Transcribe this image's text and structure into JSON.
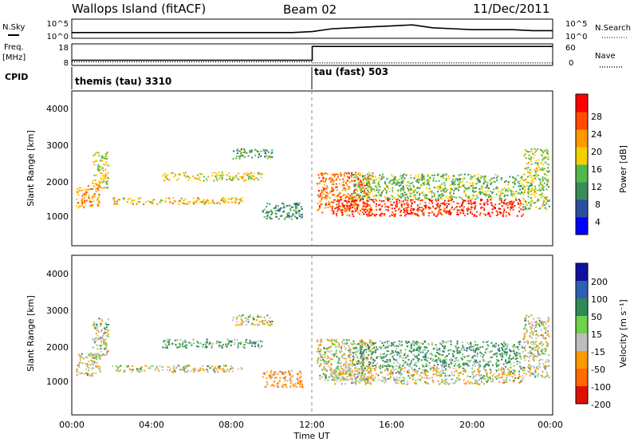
{
  "header": {
    "site": "Wallops Island (fitACF)",
    "beam": "Beam 02",
    "date": "11/Dec/2011"
  },
  "sky_panel": {
    "left_label": "N.Sky",
    "left_ticks": [
      "10^5",
      "10^0"
    ],
    "right_ticks": [
      "10^5",
      "10^0"
    ],
    "right_label": "N.Search"
  },
  "freq_panel": {
    "left_label_1": "Freq.",
    "left_label_2": "[MHz]",
    "left_ticks": [
      "18",
      "8"
    ],
    "right_ticks": [
      "60",
      "0"
    ],
    "right_label": "Nave"
  },
  "cpid": {
    "label": "CPID",
    "mode_1": "themis (tau) 3310",
    "mode_2": "tau (fast) 503"
  },
  "power_panel": {
    "ylabel": "Slant Range [km]",
    "y_ticks": [
      "4000",
      "3000",
      "2000",
      "1000"
    ],
    "colorbar_label": "Power [dB]",
    "colorbar_ticks": [
      "28",
      "24",
      "20",
      "16",
      "12",
      "8",
      "4"
    ]
  },
  "velocity_panel": {
    "ylabel": "Slant Range [km]",
    "y_ticks": [
      "4000",
      "3000",
      "2000",
      "1000"
    ],
    "colorbar_label": "Velocity [m s⁻¹]",
    "colorbar_ticks": [
      "200",
      "100",
      "50",
      "15",
      "-15",
      "-50",
      "-100",
      "-200"
    ]
  },
  "x_axis": {
    "ticks": [
      "00:00",
      "04:00",
      "08:00",
      "12:00",
      "16:00",
      "20:00",
      "00:00"
    ],
    "label": "Time UT"
  },
  "colors": {
    "power_scale": [
      "#0000ff",
      "#2a4fa0",
      "#3b8a5a",
      "#52b84e",
      "#f4d000",
      "#ff9a00",
      "#ff4a00",
      "#ff0000"
    ],
    "velocity_scale": [
      "#1010a0",
      "#2f5fb0",
      "#2e8b57",
      "#6fd24a",
      "#bdbdbd",
      "#ff9900",
      "#ff6a00",
      "#e01000"
    ]
  },
  "chart_data": [
    {
      "type": "line",
      "name": "sky-noise",
      "x_unit": "hours UT",
      "x": [
        0,
        1,
        2,
        3,
        4,
        5,
        6,
        7,
        8,
        9,
        10,
        11,
        12,
        13,
        14,
        15,
        16,
        17,
        18,
        19,
        20,
        21,
        22,
        23,
        24
      ],
      "values": [
        0.3,
        0.3,
        0.3,
        0.3,
        0.3,
        0.3,
        0.3,
        0.3,
        0.3,
        0.3,
        0.3,
        0.3,
        0.35,
        0.5,
        0.55,
        0.6,
        0.65,
        0.7,
        0.55,
        0.5,
        0.45,
        0.45,
        0.45,
        0.4,
        0.4
      ],
      "ylim": [
        0,
        1
      ]
    },
    {
      "type": "line",
      "name": "frequency",
      "x": [
        0,
        12,
        12,
        24
      ],
      "values": [
        10.4,
        10.4,
        16.8,
        16.8
      ],
      "ylim": [
        8,
        18
      ],
      "ylabel": "Freq. [MHz]"
    },
    {
      "type": "line",
      "name": "nave",
      "x": [
        0,
        12,
        12,
        24
      ],
      "values": [
        10,
        10,
        7,
        7
      ],
      "ylim": [
        0,
        60
      ]
    },
    {
      "type": "heatmap",
      "name": "power",
      "xlim": [
        0,
        24
      ],
      "ylim": [
        0,
        4600
      ],
      "ylabel": "Slant Range [km]",
      "zlabel": "Power [dB]",
      "zlim": [
        0,
        32
      ],
      "bands": [
        {
          "t": [
            0.2,
            1.4
          ],
          "r": [
            1150,
            1800
          ],
          "z": 22
        },
        {
          "t": [
            1.0,
            1.8
          ],
          "r": [
            1700,
            2800
          ],
          "z": 18
        },
        {
          "t": [
            2.0,
            8.5
          ],
          "r": [
            1250,
            1450
          ],
          "z": 20
        },
        {
          "t": [
            4.5,
            9.5
          ],
          "r": [
            1950,
            2200
          ],
          "z": 18
        },
        {
          "t": [
            8.0,
            10.0
          ],
          "r": [
            2600,
            2900
          ],
          "z": 12
        },
        {
          "t": [
            9.5,
            11.5
          ],
          "r": [
            800,
            1300
          ],
          "z": 10
        },
        {
          "t": [
            12.2,
            15.0
          ],
          "r": [
            1000,
            2200
          ],
          "z": 24
        },
        {
          "t": [
            13.0,
            22.5
          ],
          "r": [
            900,
            1400
          ],
          "z": 28
        },
        {
          "t": [
            14.0,
            22.5
          ],
          "r": [
            1400,
            2150
          ],
          "z": 14
        },
        {
          "t": [
            22.5,
            23.8
          ],
          "r": [
            1100,
            2900
          ],
          "z": 16
        }
      ]
    },
    {
      "type": "heatmap",
      "name": "velocity",
      "xlim": [
        0,
        24
      ],
      "ylim": [
        0,
        4600
      ],
      "ylabel": "Slant Range [km]",
      "zlabel": "Velocity [m s⁻¹]",
      "zlim": [
        -200,
        200
      ],
      "bands": [
        {
          "t": [
            0.2,
            1.4
          ],
          "r": [
            1150,
            1800
          ],
          "z": 0
        },
        {
          "t": [
            1.0,
            1.8
          ],
          "r": [
            1700,
            2800
          ],
          "z": 0
        },
        {
          "t": [
            2.0,
            8.5
          ],
          "r": [
            1250,
            1450
          ],
          "z": 0
        },
        {
          "t": [
            4.5,
            9.5
          ],
          "r": [
            1950,
            2200
          ],
          "z": 40
        },
        {
          "t": [
            8.0,
            10.0
          ],
          "r": [
            2600,
            2900
          ],
          "z": 0
        },
        {
          "t": [
            9.5,
            11.5
          ],
          "r": [
            800,
            1300
          ],
          "z": -40
        },
        {
          "t": [
            12.2,
            15.0
          ],
          "r": [
            1000,
            2200
          ],
          "z": 0
        },
        {
          "t": [
            13.0,
            22.5
          ],
          "r": [
            900,
            1400
          ],
          "z": 0
        },
        {
          "t": [
            14.0,
            22.5
          ],
          "r": [
            1400,
            2150
          ],
          "z": 40
        },
        {
          "t": [
            22.5,
            23.8
          ],
          "r": [
            1100,
            2900
          ],
          "z": 0
        }
      ]
    }
  ]
}
